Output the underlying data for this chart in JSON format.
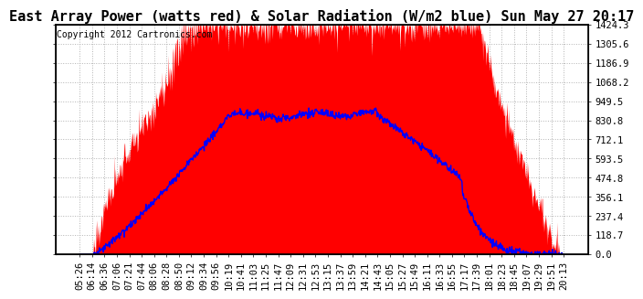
{
  "title": "East Array Power (watts red) & Solar Radiation (W/m2 blue) Sun May 27 20:17",
  "copyright": "Copyright 2012 Cartronics.com",
  "ylabel_right": [
    "1424.3",
    "1305.6",
    "1186.9",
    "1068.2",
    "949.5",
    "830.8",
    "712.1",
    "593.5",
    "474.8",
    "356.1",
    "237.4",
    "118.7",
    "0.0"
  ],
  "ytick_values": [
    1424.3,
    1305.6,
    1186.9,
    1068.2,
    949.5,
    830.8,
    712.1,
    593.5,
    474.8,
    356.1,
    237.4,
    118.7,
    0.0
  ],
  "ymax": 1424.3,
  "ymin": 0.0,
  "x_labels": [
    "05:26",
    "06:14",
    "06:36",
    "07:06",
    "07:21",
    "07:44",
    "08:06",
    "08:28",
    "08:50",
    "09:12",
    "09:34",
    "09:56",
    "10:19",
    "10:41",
    "11:03",
    "11:25",
    "11:47",
    "12:09",
    "12:31",
    "12:53",
    "13:15",
    "13:37",
    "13:59",
    "14:21",
    "14:43",
    "15:05",
    "15:27",
    "15:49",
    "16:11",
    "16:33",
    "16:55",
    "17:17",
    "17:39",
    "18:01",
    "18:23",
    "18:45",
    "19:07",
    "19:29",
    "19:51",
    "20:13"
  ],
  "background_color": "#ffffff",
  "plot_bg_color": "#ffffff",
  "red_fill_color": "#ff0000",
  "blue_line_color": "#0000ff",
  "grid_color": "#aaaaaa",
  "title_fontsize": 11,
  "copyright_fontsize": 7,
  "tick_fontsize": 7.5
}
